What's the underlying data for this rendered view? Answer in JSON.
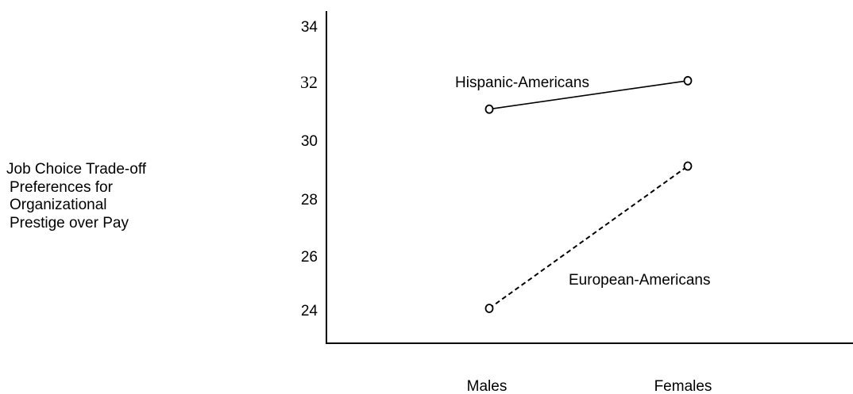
{
  "chart_data": {
    "type": "line",
    "title": "",
    "xlabel": "",
    "ylabel_lines": [
      "Job Choice Trade-off",
      "Preferences for",
      "Organizational",
      "Prestige over Pay"
    ],
    "categories": [
      "Males",
      "Females"
    ],
    "y_ticks": [
      "34",
      "32",
      "30",
      "28",
      "26",
      "24"
    ],
    "ylim": [
      23,
      34
    ],
    "grid": false,
    "legend": "none",
    "marker": "o",
    "series": [
      {
        "name": "Hispanic-Americans",
        "values": [
          31,
          32
        ],
        "line_style": "solid"
      },
      {
        "name": "European-Americans",
        "values": [
          24,
          29
        ],
        "line_style": "dashed"
      }
    ]
  }
}
